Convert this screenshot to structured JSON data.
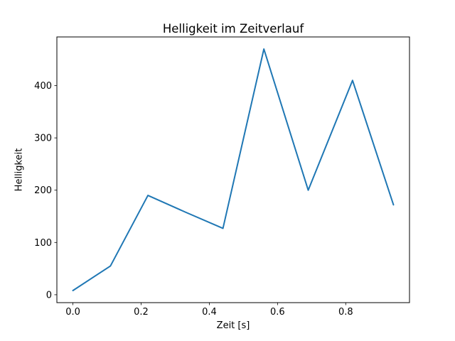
{
  "figure": {
    "background": "#ffffff"
  },
  "chart_data": {
    "type": "line",
    "title": "Helligkeit im Zeitverlauf",
    "xlabel": "Zeit [s]",
    "ylabel": "Helligkeit",
    "x": [
      0.0,
      0.11,
      0.22,
      0.33,
      0.44,
      0.56,
      0.69,
      0.82,
      0.94
    ],
    "y": [
      8,
      55,
      190,
      158,
      127,
      470,
      200,
      410,
      172
    ],
    "xticks": [
      0.0,
      0.2,
      0.4,
      0.6,
      0.8
    ],
    "xtick_labels": [
      "0.0",
      "0.2",
      "0.4",
      "0.6",
      "0.8"
    ],
    "yticks": [
      0,
      100,
      200,
      300,
      400
    ],
    "ytick_labels": [
      "0",
      "100",
      "200",
      "300",
      "400"
    ],
    "xlim": [
      -0.047,
      0.987
    ],
    "ylim": [
      -15.1,
      493.1
    ],
    "line_color": "#1f77b4",
    "axis_color": "#000000",
    "grid": false,
    "legend": null
  }
}
